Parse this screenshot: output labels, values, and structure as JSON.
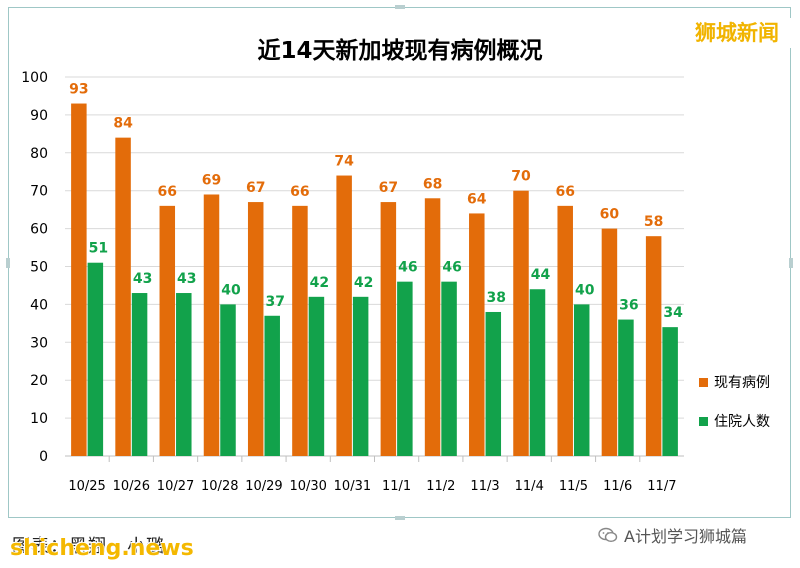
{
  "watermark": "狮城新闻",
  "caption": "图表：黑翔 · 小璐",
  "site_mark": "shicheng.news",
  "wechat_label": "A计划学习狮城篇",
  "colors": {
    "series1": "#e36c0a",
    "series2": "#12a24b",
    "grid": "#d9d9d9",
    "axis_text": "#000000"
  },
  "chart_data": {
    "type": "bar",
    "title": "近14天新加坡现有病例概况",
    "xlabel": "",
    "ylabel": "",
    "ylim": [
      0,
      100
    ],
    "yticks": [
      0,
      10,
      20,
      30,
      40,
      50,
      60,
      70,
      80,
      90,
      100
    ],
    "grid": true,
    "legend_position": "right",
    "categories": [
      "10/25",
      "10/26",
      "10/27",
      "10/28",
      "10/29",
      "10/30",
      "10/31",
      "11/1",
      "11/2",
      "11/3",
      "11/4",
      "11/5",
      "11/6",
      "11/7"
    ],
    "series": [
      {
        "name": "现有病例",
        "color": "#e36c0a",
        "values": [
          93,
          84,
          66,
          69,
          67,
          66,
          74,
          67,
          68,
          64,
          70,
          66,
          60,
          58
        ]
      },
      {
        "name": "住院人数",
        "color": "#12a24b",
        "values": [
          51,
          43,
          43,
          40,
          37,
          42,
          42,
          46,
          46,
          38,
          44,
          40,
          36,
          34
        ]
      }
    ]
  }
}
